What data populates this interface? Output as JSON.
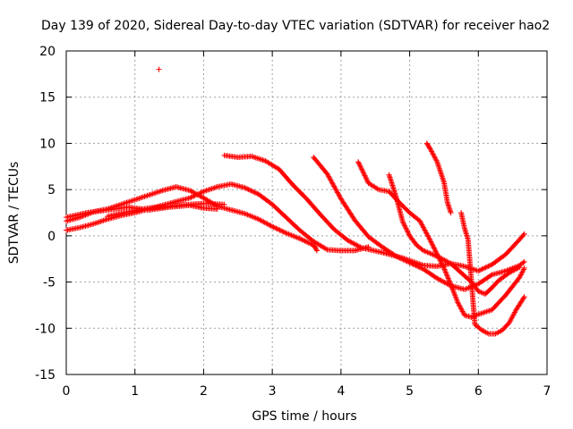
{
  "chart_data": {
    "type": "scatter",
    "title": "Day 139 of 2020, Sidereal Day-to-day VTEC variation (SDTVAR) for receiver hao2",
    "xlabel": "GPS time / hours",
    "ylabel": "SDTVAR / TECUs",
    "xlim": [
      0,
      7
    ],
    "ylim": [
      -15,
      20
    ],
    "xticks": [
      "0",
      "1",
      "2",
      "3",
      "4",
      "5",
      "6",
      "7"
    ],
    "yticks": [
      "-15",
      "-10",
      "-5",
      "0",
      "5",
      "10",
      "15",
      "20"
    ],
    "grid": true,
    "marker": "+",
    "color": "#ff0000",
    "series": [
      {
        "name": "s1",
        "points": [
          [
            0.0,
            1.6
          ],
          [
            0.2,
            2.0
          ],
          [
            0.4,
            2.6
          ],
          [
            0.6,
            2.9
          ],
          [
            0.8,
            3.4
          ],
          [
            1.0,
            3.9
          ],
          [
            1.2,
            4.4
          ],
          [
            1.4,
            4.9
          ],
          [
            1.6,
            5.3
          ],
          [
            1.8,
            4.9
          ],
          [
            2.0,
            4.1
          ],
          [
            2.2,
            3.2
          ],
          [
            2.4,
            2.8
          ],
          [
            2.6,
            2.4
          ],
          [
            2.8,
            1.8
          ],
          [
            3.0,
            1.0
          ],
          [
            3.2,
            0.3
          ],
          [
            3.4,
            -0.3
          ],
          [
            3.6,
            -1.0
          ],
          [
            3.65,
            -1.6
          ]
        ]
      },
      {
        "name": "s2",
        "points": [
          [
            0.0,
            0.6
          ],
          [
            0.2,
            0.9
          ],
          [
            0.4,
            1.3
          ],
          [
            0.6,
            1.8
          ],
          [
            0.8,
            2.2
          ],
          [
            1.0,
            2.5
          ],
          [
            1.2,
            2.9
          ],
          [
            1.4,
            3.3
          ],
          [
            1.6,
            3.7
          ],
          [
            1.8,
            4.1
          ],
          [
            2.0,
            4.8
          ],
          [
            2.2,
            5.3
          ],
          [
            2.4,
            5.6
          ],
          [
            2.6,
            5.2
          ],
          [
            2.8,
            4.5
          ],
          [
            3.0,
            3.4
          ],
          [
            3.2,
            2.0
          ],
          [
            3.4,
            0.6
          ],
          [
            3.6,
            -0.6
          ],
          [
            3.8,
            -1.5
          ],
          [
            4.0,
            -1.6
          ],
          [
            4.2,
            -1.6
          ],
          [
            4.4,
            -1.2
          ]
        ]
      },
      {
        "name": "s3",
        "points": [
          [
            0.0,
            2.0
          ],
          [
            0.3,
            2.5
          ],
          [
            0.6,
            2.8
          ],
          [
            0.9,
            3.1
          ],
          [
            1.2,
            2.8
          ],
          [
            1.5,
            3.1
          ],
          [
            1.8,
            3.3
          ],
          [
            2.0,
            3.0
          ],
          [
            2.2,
            2.9
          ]
        ]
      },
      {
        "name": "s4",
        "points": [
          [
            0.6,
            2.1
          ],
          [
            0.9,
            2.6
          ],
          [
            1.2,
            3.0
          ],
          [
            1.5,
            3.2
          ],
          [
            1.8,
            3.4
          ],
          [
            2.0,
            3.5
          ],
          [
            2.3,
            3.4
          ]
        ]
      },
      {
        "name": "s5",
        "points": [
          [
            2.3,
            8.7
          ],
          [
            2.5,
            8.5
          ],
          [
            2.7,
            8.6
          ],
          [
            2.9,
            8.1
          ],
          [
            3.1,
            7.2
          ],
          [
            3.3,
            5.5
          ],
          [
            3.5,
            4.0
          ],
          [
            3.7,
            2.3
          ],
          [
            3.9,
            0.7
          ],
          [
            4.1,
            -0.5
          ],
          [
            4.3,
            -1.3
          ],
          [
            4.6,
            -1.8
          ],
          [
            4.9,
            -2.4
          ],
          [
            5.2,
            -3.2
          ],
          [
            5.4,
            -3.3
          ],
          [
            5.6,
            -3.0
          ],
          [
            5.8,
            -3.3
          ],
          [
            6.0,
            -3.8
          ],
          [
            6.2,
            -3.1
          ],
          [
            6.4,
            -2.0
          ],
          [
            6.6,
            -0.4
          ],
          [
            6.67,
            0.2
          ]
        ]
      },
      {
        "name": "s6",
        "points": [
          [
            3.6,
            8.5
          ],
          [
            3.8,
            6.7
          ],
          [
            4.0,
            4.0
          ],
          [
            4.2,
            1.7
          ],
          [
            4.4,
            -0.1
          ],
          [
            4.6,
            -1.2
          ],
          [
            4.8,
            -2.2
          ],
          [
            5.0,
            -2.9
          ],
          [
            5.2,
            -3.6
          ],
          [
            5.4,
            -4.6
          ],
          [
            5.6,
            -5.4
          ],
          [
            5.8,
            -5.8
          ],
          [
            6.0,
            -5.2
          ],
          [
            6.2,
            -4.2
          ],
          [
            6.4,
            -3.8
          ],
          [
            6.6,
            -3.2
          ],
          [
            6.67,
            -2.8
          ]
        ]
      },
      {
        "name": "s7",
        "points": [
          [
            4.25,
            8.0
          ],
          [
            4.4,
            5.7
          ],
          [
            4.55,
            5.0
          ],
          [
            4.7,
            4.8
          ],
          [
            4.85,
            3.6
          ],
          [
            5.0,
            2.5
          ],
          [
            5.15,
            1.6
          ],
          [
            5.3,
            -0.5
          ],
          [
            5.4,
            -2.0
          ],
          [
            5.5,
            -3.5
          ],
          [
            5.6,
            -5.3
          ],
          [
            5.7,
            -7.2
          ],
          [
            5.8,
            -8.6
          ],
          [
            5.9,
            -8.8
          ],
          [
            6.0,
            -8.5
          ],
          [
            6.2,
            -8.0
          ],
          [
            6.4,
            -6.4
          ],
          [
            6.6,
            -4.5
          ],
          [
            6.67,
            -3.5
          ]
        ]
      },
      {
        "name": "s8",
        "points": [
          [
            4.7,
            6.6
          ],
          [
            4.8,
            4.3
          ],
          [
            4.9,
            1.5
          ],
          [
            5.0,
            0.0
          ],
          [
            5.1,
            -1.0
          ],
          [
            5.2,
            -1.6
          ],
          [
            5.3,
            -1.9
          ],
          [
            5.45,
            -2.4
          ],
          [
            5.6,
            -3.0
          ],
          [
            5.75,
            -4.0
          ],
          [
            5.9,
            -5.0
          ],
          [
            6.0,
            -6.0
          ],
          [
            6.1,
            -6.3
          ],
          [
            6.2,
            -5.6
          ],
          [
            6.3,
            -4.8
          ],
          [
            6.45,
            -4.0
          ],
          [
            6.6,
            -3.4
          ]
        ]
      },
      {
        "name": "s9",
        "points": [
          [
            5.25,
            10.0
          ],
          [
            5.3,
            9.4
          ],
          [
            5.4,
            8.0
          ],
          [
            5.5,
            5.8
          ],
          [
            5.55,
            3.6
          ],
          [
            5.6,
            2.5
          ]
        ]
      },
      {
        "name": "s10",
        "points": [
          [
            5.75,
            2.5
          ],
          [
            5.8,
            0.8
          ],
          [
            5.85,
            -0.4
          ],
          [
            5.95,
            -9.6
          ],
          [
            6.05,
            -10.2
          ],
          [
            6.15,
            -10.6
          ],
          [
            6.25,
            -10.6
          ],
          [
            6.35,
            -10.2
          ],
          [
            6.45,
            -9.4
          ],
          [
            6.55,
            -8.0
          ],
          [
            6.67,
            -6.6
          ]
        ]
      },
      {
        "name": "s11",
        "points": [
          [
            1.35,
            18.0
          ]
        ]
      }
    ]
  }
}
